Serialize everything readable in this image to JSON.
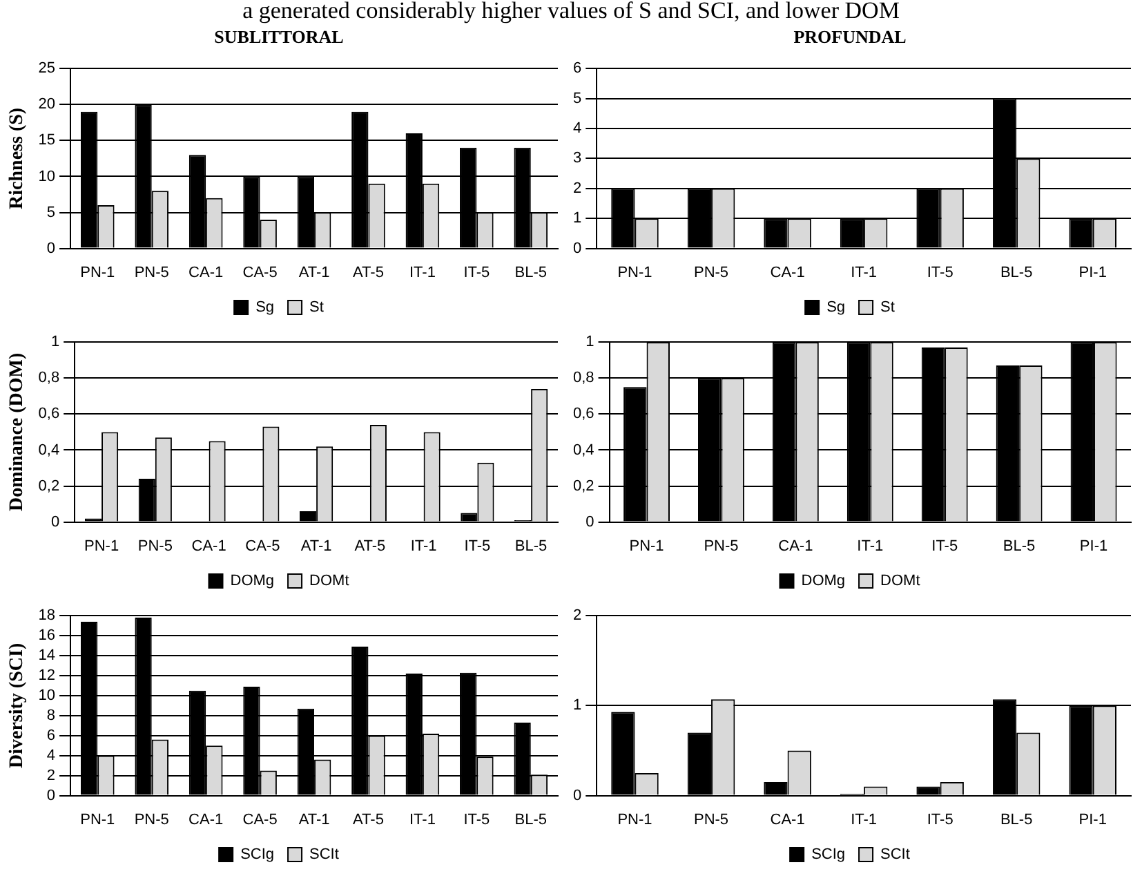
{
  "chart_data": [
    {
      "type": "bar",
      "title": "SUBLITTORAL",
      "ylabel": "Richness (S)",
      "annotations": [
        "a generated considerably higher values of S and SCI, and lower DOM"
      ],
      "categories": [
        "PN-1",
        "PN-5",
        "CA-1",
        "CA-5",
        "AT-1",
        "AT-5",
        "IT-1",
        "IT-5",
        "BL-5"
      ],
      "series": [
        {
          "name": "Sg",
          "color": "#000000",
          "values": [
            19,
            20,
            13,
            10,
            10,
            19,
            16,
            14,
            14
          ]
        },
        {
          "name": "St",
          "color": "#d9d9d9",
          "values": [
            6,
            8,
            7,
            4,
            5,
            9,
            9,
            5,
            5
          ]
        }
      ],
      "ylim": [
        0,
        25
      ],
      "yticks": [
        0,
        5,
        10,
        15,
        20,
        25
      ],
      "grid": "y",
      "legend": "bottom"
    },
    {
      "type": "bar",
      "title": "PROFUNDAL",
      "categories": [
        "PN-1",
        "PN-5",
        "CA-1",
        "IT-1",
        "IT-5",
        "BL-5",
        "PI-1"
      ],
      "series": [
        {
          "name": "Sg",
          "color": "#000000",
          "values": [
            2,
            2,
            1,
            1,
            2,
            5,
            1
          ]
        },
        {
          "name": "St",
          "color": "#d9d9d9",
          "values": [
            1,
            2,
            1,
            1,
            2,
            3,
            1
          ]
        }
      ],
      "ylim": [
        0,
        6
      ],
      "yticks": [
        0,
        1,
        2,
        3,
        4,
        5,
        6
      ],
      "grid": "y",
      "legend": "bottom"
    },
    {
      "type": "bar",
      "ylabel": "Dominance (DOM)",
      "categories": [
        "PN-1",
        "PN-5",
        "CA-1",
        "CA-5",
        "AT-1",
        "AT-5",
        "IT-1",
        "IT-5",
        "BL-5"
      ],
      "series": [
        {
          "name": "DOMg",
          "color": "#000000",
          "values": [
            0.02,
            0.24,
            0,
            0,
            0.06,
            0,
            0,
            0.05,
            0.01
          ]
        },
        {
          "name": "DOMt",
          "color": "#d9d9d9",
          "values": [
            0.5,
            0.47,
            0.45,
            0.53,
            0.42,
            0.54,
            0.5,
            0.33,
            0.74
          ]
        }
      ],
      "ylim": [
        0,
        1
      ],
      "yticks": [
        0,
        {
          "value": 0.2,
          "label": "0,2"
        },
        {
          "value": 0.4,
          "label": "0,4"
        },
        {
          "value": 0.6,
          "label": "0,6"
        },
        {
          "value": 0.8,
          "label": "0,8"
        },
        1
      ],
      "grid": "y",
      "legend": "bottom"
    },
    {
      "type": "bar",
      "categories": [
        "PN-1",
        "PN-5",
        "CA-1",
        "IT-1",
        "IT-5",
        "BL-5",
        "PI-1"
      ],
      "series": [
        {
          "name": "DOMg",
          "color": "#000000",
          "values": [
            0.75,
            0.8,
            1,
            1,
            0.97,
            0.87,
            1
          ]
        },
        {
          "name": "DOMt",
          "color": "#d9d9d9",
          "values": [
            1,
            0.8,
            1,
            1,
            0.97,
            0.87,
            1
          ]
        }
      ],
      "ylim": [
        0,
        1
      ],
      "yticks": [
        0,
        {
          "value": 0.2,
          "label": "0,2"
        },
        {
          "value": 0.4,
          "label": "0,4"
        },
        {
          "value": 0.6,
          "label": "0,6"
        },
        {
          "value": 0.8,
          "label": "0,8"
        },
        1
      ],
      "grid": "y",
      "legend": "bottom"
    },
    {
      "type": "bar",
      "ylabel": "Diversity (SCI)",
      "categories": [
        "PN-1",
        "PN-5",
        "CA-1",
        "CA-5",
        "AT-1",
        "AT-5",
        "IT-1",
        "IT-5",
        "BL-5"
      ],
      "series": [
        {
          "name": "SCIg",
          "color": "#000000",
          "values": [
            17.4,
            17.8,
            10.5,
            10.9,
            8.7,
            14.9,
            12.2,
            12.3,
            7.3
          ]
        },
        {
          "name": "SCIt",
          "color": "#d9d9d9",
          "values": [
            4,
            5.6,
            5,
            2.5,
            3.6,
            6,
            6.2,
            3.9,
            2.1
          ]
        }
      ],
      "ylim": [
        0,
        18
      ],
      "yticks": [
        0,
        2,
        4,
        6,
        8,
        10,
        12,
        14,
        16,
        18
      ],
      "grid": "y",
      "legend": "bottom"
    },
    {
      "type": "bar",
      "categories": [
        "PN-1",
        "PN-5",
        "CA-1",
        "IT-1",
        "IT-5",
        "BL-5",
        "PI-1"
      ],
      "series": [
        {
          "name": "SCIg",
          "color": "#000000",
          "values": [
            0.93,
            0.7,
            0.15,
            0.02,
            0.1,
            1.07,
            1
          ]
        },
        {
          "name": "SCIt",
          "color": "#d9d9d9",
          "values": [
            0.25,
            1.07,
            0.5,
            0.1,
            0.15,
            0.7,
            1
          ]
        }
      ],
      "ylim": [
        0,
        2
      ],
      "yticks": [
        0,
        1,
        2
      ],
      "grid": "y",
      "legend": "bottom"
    }
  ]
}
